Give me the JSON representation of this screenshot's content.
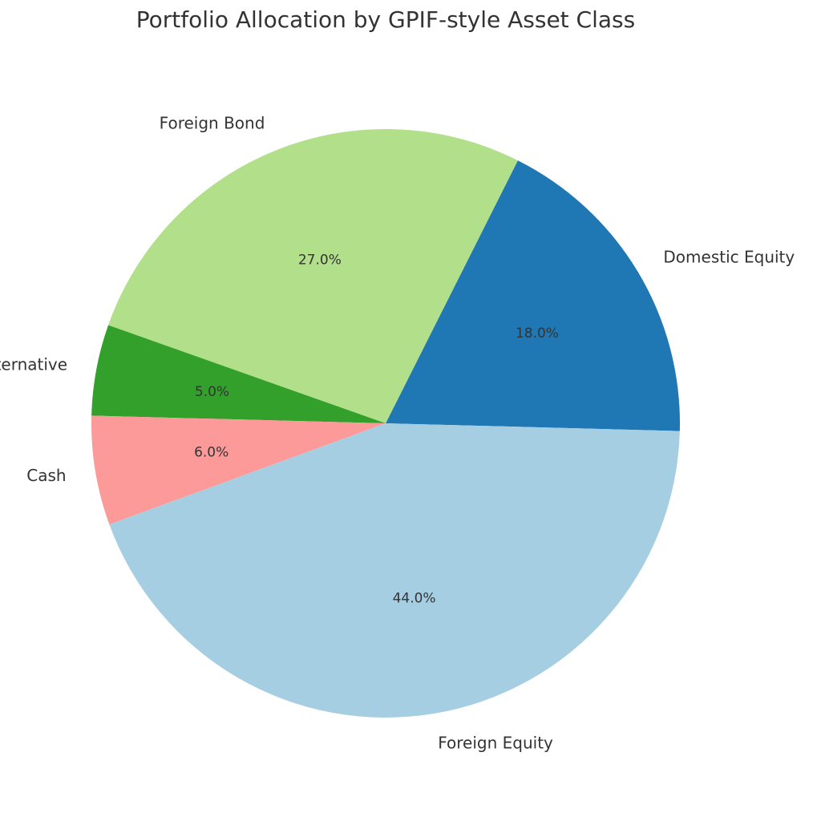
{
  "chart_data": {
    "type": "pie",
    "title": "Portfolio Allocation by GPIF-style Asset Class",
    "slices": [
      {
        "label": "Domestic Equity",
        "value": 18.0,
        "pct_label": "18.0%",
        "color": "#1f78b4"
      },
      {
        "label": "Foreign Bond",
        "value": 27.0,
        "pct_label": "27.0%",
        "color": "#b2df8a"
      },
      {
        "label": "Alternative",
        "value": 5.0,
        "pct_label": "5.0%",
        "color": "#33a02c"
      },
      {
        "label": "Cash",
        "value": 6.0,
        "pct_label": "6.0%",
        "color": "#fb9a99"
      },
      {
        "label": "Foreign Equity",
        "value": 44.0,
        "pct_label": "44.0%",
        "color": "#a6cee3"
      }
    ],
    "start_angle_deg": -1.5,
    "direction": "counterclockwise"
  }
}
